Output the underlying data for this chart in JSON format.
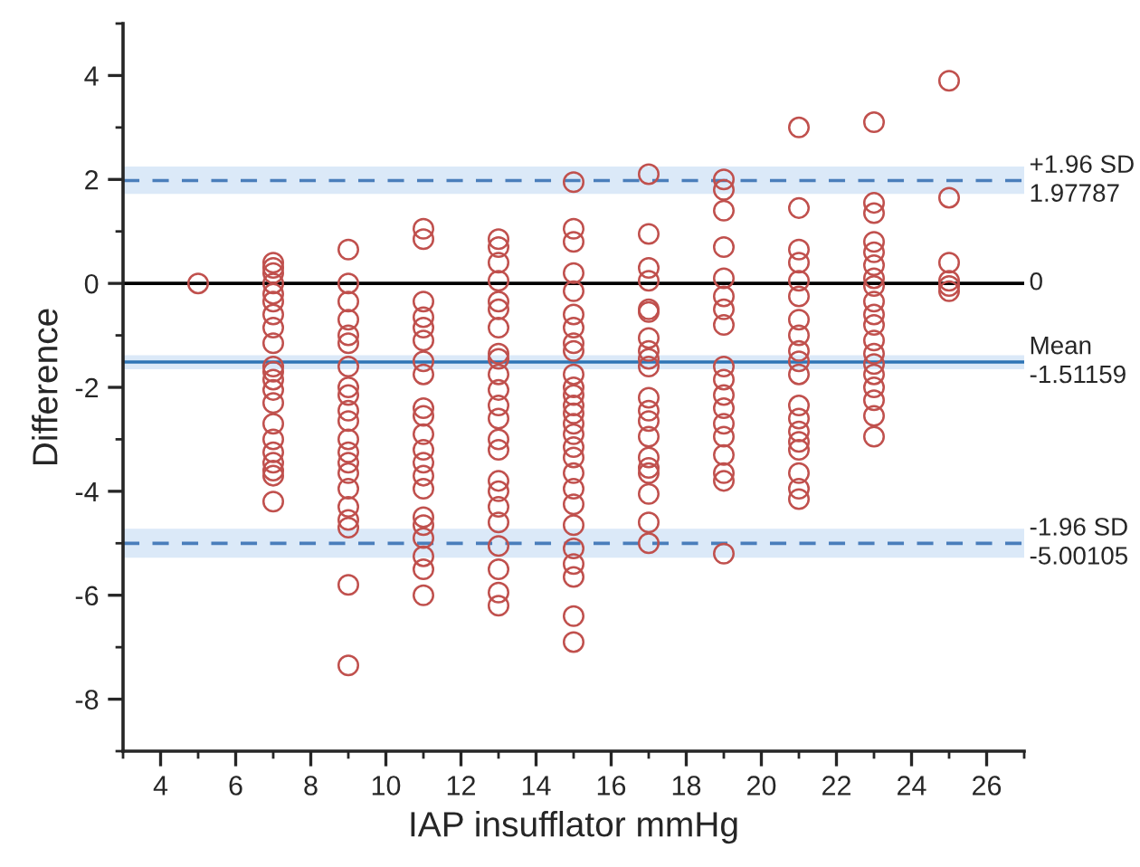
{
  "chart_data": {
    "type": "scatter",
    "xlabel": "IAP insufflator mmHg",
    "ylabel": "Difference",
    "xlim": [
      3,
      27
    ],
    "xticks": [
      4,
      6,
      8,
      10,
      12,
      14,
      16,
      18,
      20,
      22,
      24,
      26
    ],
    "ylim": [
      -9,
      5
    ],
    "yticks": [
      -8,
      -6,
      -4,
      -2,
      0,
      2,
      4
    ],
    "grid": false,
    "marker": "circle",
    "series": [
      {
        "color": "#c0504d",
        "x": [
          5,
          7,
          7,
          7,
          7,
          7,
          7,
          7,
          7,
          7,
          7,
          7,
          7,
          7,
          7,
          7,
          7,
          7,
          7,
          7,
          7,
          7,
          9,
          9,
          9,
          9,
          9,
          9,
          9,
          9,
          9,
          9,
          9,
          9,
          9,
          9,
          9,
          9,
          9,
          9,
          9,
          9,
          9,
          11,
          11,
          11,
          11,
          11,
          11,
          11,
          11,
          11,
          11,
          11,
          11,
          11,
          11,
          11,
          11,
          11,
          11,
          11,
          11,
          11,
          13,
          13,
          13,
          13,
          13,
          13,
          13,
          13,
          13,
          13,
          13,
          13,
          13,
          13,
          13,
          13,
          13,
          13,
          13,
          13,
          13,
          13,
          13,
          15,
          15,
          15,
          15,
          15,
          15,
          15,
          15,
          15,
          15,
          15,
          15,
          15,
          15,
          15,
          15,
          15,
          15,
          15,
          15,
          15,
          15,
          15,
          15,
          15,
          15,
          15,
          17,
          17,
          17,
          17,
          17,
          17,
          17,
          17,
          17,
          17,
          17,
          17,
          17,
          17,
          17,
          17,
          17,
          17,
          17,
          17,
          19,
          19,
          19,
          19,
          19,
          19,
          19,
          19,
          19,
          19,
          19,
          19,
          19,
          19,
          19,
          19,
          19,
          19,
          21,
          21,
          21,
          21,
          21,
          21,
          21,
          21,
          21,
          21,
          21,
          21,
          21,
          21,
          21,
          21,
          21,
          21,
          21,
          23,
          23,
          23,
          23,
          23,
          23,
          23,
          23,
          23,
          23,
          23,
          23,
          23,
          23,
          23,
          23,
          23,
          23,
          23,
          25,
          25,
          25,
          25,
          25,
          25
        ],
        "values": [
          0,
          0.4,
          0.3,
          0.2,
          0,
          -0.2,
          -0.35,
          -0.6,
          -0.85,
          -1.15,
          -1.6,
          -1.7,
          -1.85,
          -2.05,
          -2.3,
          -2.7,
          -3.0,
          -3.25,
          -3.45,
          -3.6,
          -3.7,
          -4.2,
          0.65,
          0,
          -0.35,
          -0.7,
          -1.0,
          -1.15,
          -1.6,
          -2.0,
          -2.15,
          -2.45,
          -2.65,
          -3.0,
          -3.25,
          -3.45,
          -3.65,
          -3.95,
          -4.3,
          -4.55,
          -4.7,
          -5.8,
          -7.35,
          1.05,
          0.85,
          -0.35,
          -0.65,
          -0.85,
          -1.1,
          -1.5,
          -1.75,
          -2.4,
          -2.55,
          -2.9,
          -3.2,
          -3.45,
          -3.7,
          -3.95,
          -4.5,
          -4.65,
          -4.9,
          -5.25,
          -5.5,
          -6.0,
          0.85,
          0.7,
          0.4,
          0.05,
          -0.35,
          -0.5,
          -0.85,
          -1.35,
          -1.45,
          -1.75,
          -2.05,
          -2.35,
          -2.6,
          -3.0,
          -3.2,
          -3.8,
          -4.0,
          -4.3,
          -4.6,
          -5.05,
          -5.5,
          -5.95,
          -6.2,
          1.95,
          1.05,
          0.8,
          0.2,
          -0.15,
          -0.6,
          -0.85,
          -1.15,
          -1.3,
          -1.75,
          -2.0,
          -2.15,
          -2.35,
          -2.5,
          -2.7,
          -2.9,
          -3.15,
          -3.35,
          -3.65,
          -3.95,
          -4.25,
          -4.65,
          -5.1,
          -5.4,
          -5.65,
          -6.4,
          -6.9,
          2.1,
          0.95,
          0.3,
          0.05,
          -0.5,
          -0.55,
          -1.05,
          -1.3,
          -1.45,
          -1.6,
          -2.2,
          -2.45,
          -2.65,
          -2.95,
          -3.35,
          -3.55,
          -3.65,
          -4.05,
          -4.6,
          -5.0,
          2.0,
          1.8,
          1.4,
          0.7,
          0.1,
          -0.25,
          -0.5,
          -0.8,
          -1.6,
          -1.85,
          -2.15,
          -2.4,
          -2.7,
          -2.95,
          -3.3,
          -3.65,
          -3.8,
          -5.2,
          3.0,
          1.45,
          0.65,
          0.4,
          0.05,
          -0.25,
          -0.7,
          -1.0,
          -1.3,
          -1.5,
          -1.75,
          -2.35,
          -2.6,
          -2.85,
          -3.05,
          -3.2,
          -3.65,
          -3.95,
          -4.15,
          3.1,
          1.55,
          1.35,
          0.8,
          0.6,
          0.35,
          0.1,
          -0.05,
          -0.35,
          -0.6,
          -0.8,
          -1.1,
          -1.35,
          -1.55,
          -1.75,
          -2.0,
          -2.25,
          -2.55,
          -2.95,
          3.9,
          1.65,
          0.4,
          0.05,
          -0.05,
          -0.15
        ]
      }
    ],
    "bands": [
      {
        "axis": "y",
        "from": 1.72,
        "to": 2.25,
        "color": "#dbe9f8"
      },
      {
        "axis": "y",
        "from": -1.65,
        "to": -1.38,
        "color": "#dbe9f8"
      },
      {
        "axis": "y",
        "from": -5.28,
        "to": -4.72,
        "color": "#dbe9f8"
      }
    ],
    "ref_lines": [
      {
        "axis": "y",
        "value": 1.97787,
        "label": "+1.96 SD\n1.97787",
        "color": "#4a7ebb",
        "line_style": "dashed"
      },
      {
        "axis": "y",
        "value": 0,
        "label": "0",
        "color": "#000000",
        "line_style": "solid"
      },
      {
        "axis": "y",
        "value": -1.51159,
        "label": "Mean\n-1.51159",
        "color": "#2e75b6",
        "line_style": "solid"
      },
      {
        "axis": "y",
        "value": -5.00105,
        "label": "-1.96 SD\n-5.00105",
        "color": "#4a7ebb",
        "line_style": "dashed"
      }
    ]
  }
}
